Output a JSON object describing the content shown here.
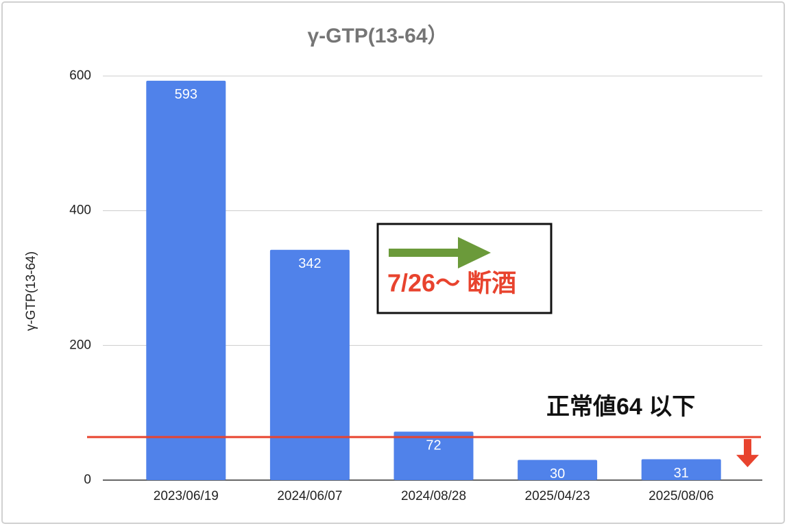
{
  "chart_data": {
    "type": "bar",
    "title": "γ-GTP(13-64）",
    "y_label": "γ-GTP(13-64)",
    "categories": [
      "2023/06/19",
      "2024/06/07",
      "2024/08/28",
      "2025/04/23",
      "2025/08/06"
    ],
    "values": [
      593,
      342,
      72,
      30,
      31
    ],
    "color": "#5082ea",
    "ylim": [
      0,
      600
    ],
    "yticks": [
      0,
      200,
      400,
      600
    ],
    "grid": true,
    "reference_line": {
      "value": 64,
      "label": "正常値64 以下",
      "color": "#e8432e"
    },
    "annotation": {
      "text": "7/26〜 断酒",
      "color": "#e8432e",
      "arrow_color": "#6b9a3a"
    }
  }
}
